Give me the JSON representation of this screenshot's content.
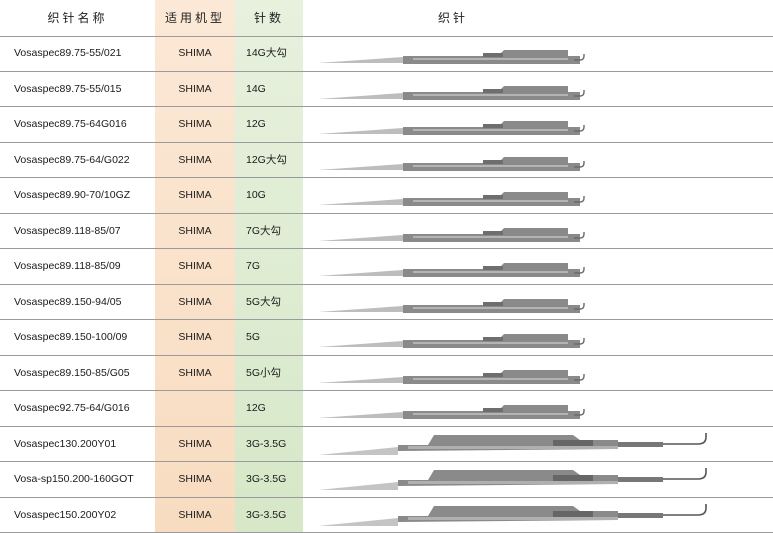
{
  "header": {
    "name": "织针名称",
    "machine": "适用机型",
    "gauge": "针数",
    "image": "织针"
  },
  "colors": {
    "machine_column": "#f8dcc0",
    "gauge_column": "#d6e8c8",
    "needle_steel": "#8a8a8a"
  },
  "rows": [
    {
      "name": "Vosaspec89.75-55/021",
      "machine": "SHIMA",
      "gauge": "14G大勾",
      "needle_size": "small"
    },
    {
      "name": "Vosaspec89.75-55/015",
      "machine": "SHIMA",
      "gauge": "14G",
      "needle_size": "small"
    },
    {
      "name": "Vosaspec89.75-64G016",
      "machine": "SHIMA",
      "gauge": "12G",
      "needle_size": "small"
    },
    {
      "name": "Vosaspec89.75-64/G022",
      "machine": "SHIMA",
      "gauge": "12G大勾",
      "needle_size": "small"
    },
    {
      "name": "Vosaspec89.90-70/10GZ",
      "machine": "SHIMA",
      "gauge": "10G",
      "needle_size": "small"
    },
    {
      "name": "Vosaspec89.118-85/07",
      "machine": "SHIMA",
      "gauge": "7G大勾",
      "needle_size": "small"
    },
    {
      "name": "Vosaspec89.118-85/09",
      "machine": "SHIMA",
      "gauge": "7G",
      "needle_size": "small"
    },
    {
      "name": "Vosaspec89.150-94/05",
      "machine": "SHIMA",
      "gauge": "5G大勾",
      "needle_size": "small"
    },
    {
      "name": "Vosaspec89.150-100/09",
      "machine": "SHIMA",
      "gauge": "5G",
      "needle_size": "small"
    },
    {
      "name": "Vosaspec89.150-85/G05",
      "machine": "SHIMA",
      "gauge": "5G小勾",
      "needle_size": "small"
    },
    {
      "name": "Vosaspec92.75-64/G016",
      "machine": "",
      "gauge": "12G",
      "needle_size": "small"
    },
    {
      "name": "Vosaspec130.200Y01",
      "machine": "SHIMA",
      "gauge": "3G-3.5G",
      "needle_size": "large"
    },
    {
      "name": "Vosa-sp150.200-160GOT",
      "machine": "SHIMA",
      "gauge": "3G-3.5G",
      "needle_size": "large"
    },
    {
      "name": "Vosaspec150.200Y02",
      "machine": "SHIMA",
      "gauge": "3G-3.5G",
      "needle_size": "large"
    }
  ]
}
